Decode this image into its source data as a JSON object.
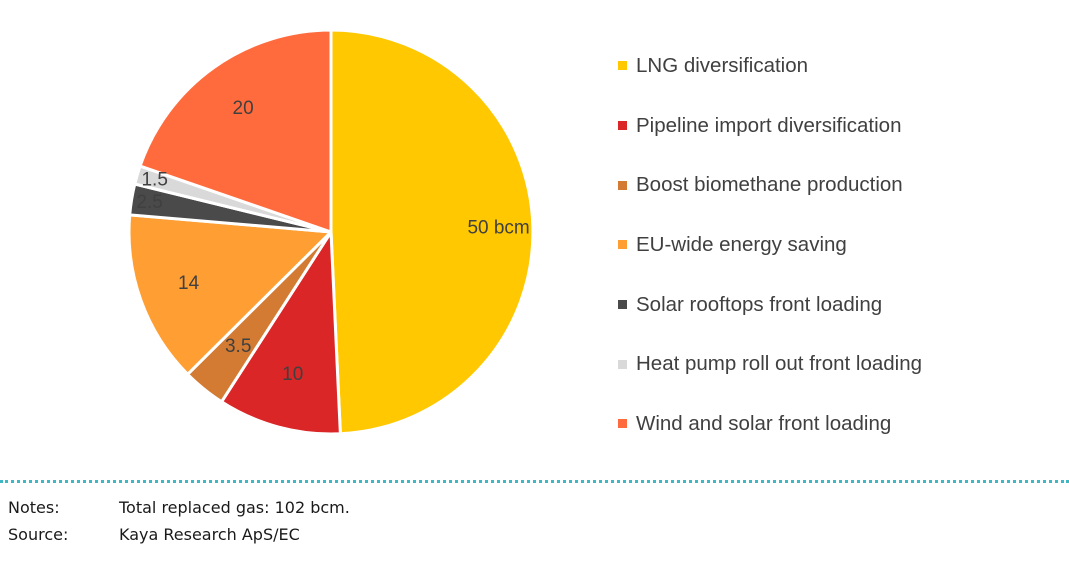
{
  "chart_data": {
    "type": "pie",
    "unit": "bcm",
    "slices": [
      {
        "label": "LNG diversification",
        "value": 50,
        "value_label": "50 bcm",
        "color": "#FFC800"
      },
      {
        "label": "Pipeline import diversification",
        "value": 10,
        "value_label": "10",
        "color": "#DA2626"
      },
      {
        "label": "Boost biomethane production",
        "value": 3.5,
        "value_label": "3.5",
        "color": "#D37B33"
      },
      {
        "label": "EU-wide energy saving",
        "value": 14,
        "value_label": "14",
        "color": "#FF9E33"
      },
      {
        "label": "Solar rooftops front loading",
        "value": 2.5,
        "value_label": "2.5",
        "color": "#4A4A4A"
      },
      {
        "label": "Heat pump roll out front loading",
        "value": 1.5,
        "value_label": "1.5",
        "color": "#D9D9D9"
      },
      {
        "label": "Wind and solar front loading",
        "value": 20,
        "value_label": "20",
        "color": "#FF6B3D"
      }
    ],
    "legend_position": "right"
  },
  "notes": {
    "notes_key": "Notes:",
    "notes_value": "Total replaced gas: 102 bcm.",
    "source_key": "Source:",
    "source_value": "Kaya Research ApS/EC"
  },
  "colors": {
    "divider": "#3FB8C6",
    "label_text": "#404040"
  }
}
